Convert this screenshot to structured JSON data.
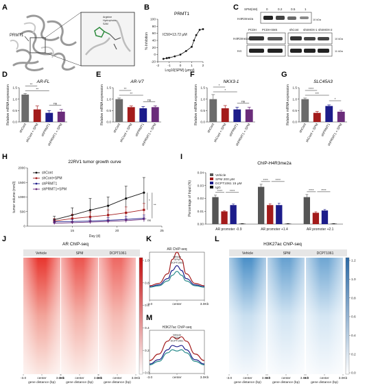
{
  "panel_letters": [
    "A",
    "B",
    "C",
    "D",
    "E",
    "F",
    "G",
    "H",
    "I",
    "J",
    "K",
    "L",
    "M"
  ],
  "colors": {
    "dark_gray": "#6b6b6b",
    "red": "#a31b1b",
    "blue": "#1c1c8a",
    "purple": "#6a2c7a",
    "heat_red": "#d7191c",
    "heat_blue": "#3a7fb8"
  },
  "panelA": {
    "protein": "PRMT1",
    "inset_labels": [
      "Arginine",
      "Hydrophobic",
      "SAM"
    ]
  },
  "panelB": {
    "title": "PRMT1",
    "ic50": "IC50=13.72 μM",
    "xlabel": "Log10[SPM] (μmol)",
    "ylabel": "% Inhibition"
  },
  "panelC": {
    "spm_header": "SPM(nM)",
    "spm_doses": [
      "0",
      "0.2",
      "0.5",
      "1"
    ],
    "rows": [
      "H4R3me2a",
      "H4R3me2a",
      "H4"
    ],
    "sizes": [
      "10 kDa",
      "10 kDa",
      "11 kDa"
    ],
    "lane_groups": [
      "PCDH",
      "PCDH-SMS",
      "shCont",
      "shSMOX-1",
      "shSMOX-2"
    ]
  },
  "chart_data": [
    {
      "type": "line",
      "panel": "B",
      "title": "PRMT1",
      "xlabel": "Log10[SPM] (μmol)",
      "ylabel": "% Inhibition",
      "xlim": [
        -2,
        2
      ],
      "ylim": [
        -20,
        100
      ],
      "x": [
        -1.5,
        -1.2,
        -1.0,
        -0.5,
        0.0,
        0.5,
        1.0,
        1.2,
        1.4,
        1.7,
        2.0
      ],
      "y": [
        -12,
        -10,
        -9,
        -5,
        0,
        10,
        22,
        40,
        55,
        70,
        72
      ]
    },
    {
      "type": "bar",
      "panel": "D",
      "title": "AR-FL",
      "ylabel": "Relative mRNA expression",
      "ylim": [
        0,
        1.5
      ],
      "yticks": [
        0.0,
        0.5,
        1.0,
        1.5
      ],
      "categories": [
        "shCont",
        "shCont + SPM",
        "shPRMT1",
        "shPRMT1 + SPM"
      ],
      "values": [
        1.2,
        0.55,
        0.4,
        0.45
      ],
      "errors": [
        0.05,
        0.15,
        0.1,
        0.1
      ],
      "significance": [
        "**",
        "**",
        "ns"
      ]
    },
    {
      "type": "bar",
      "panel": "E",
      "title": "AR-V7",
      "ylabel": "Relative mRNA expression",
      "ylim": [
        0,
        1.5
      ],
      "yticks": [
        0.0,
        0.5,
        1.0,
        1.5
      ],
      "categories": [
        "shCont",
        "shCont + SPM",
        "shPRMT1",
        "shPRMT1 + SPM"
      ],
      "values": [
        1.0,
        0.65,
        0.6,
        0.65
      ],
      "errors": [
        0.05,
        0.05,
        0.08,
        0.06
      ],
      "significance": [
        "**",
        "**",
        "ns"
      ]
    },
    {
      "type": "bar",
      "panel": "F",
      "title": "NKX3-1",
      "ylabel": "Relative mRNA expression",
      "ylim": [
        0,
        1.5
      ],
      "yticks": [
        0.0,
        0.5,
        1.0,
        1.5
      ],
      "categories": [
        "shCont",
        "shCont + SPM",
        "shPRMT1",
        "shPRMT1 + SPM"
      ],
      "values": [
        1.0,
        0.6,
        0.55,
        0.55
      ],
      "errors": [
        0.2,
        0.12,
        0.1,
        0.1
      ],
      "significance": [
        "*",
        "*",
        "ns"
      ]
    },
    {
      "type": "bar",
      "panel": "G",
      "title": "SLC45A3",
      "ylabel": "Relative mRNA expression",
      "ylim": [
        0,
        1.5
      ],
      "yticks": [
        0.0,
        0.5,
        1.0,
        1.5
      ],
      "categories": [
        "shCont",
        "shCont + SPM",
        "shPRMT1",
        "shPRMT1 + SPM"
      ],
      "values": [
        1.0,
        0.4,
        0.7,
        0.45
      ],
      "errors": [
        0.05,
        0.06,
        0.05,
        0.06
      ],
      "significance": [
        "****",
        "***",
        "*"
      ]
    },
    {
      "type": "line",
      "panel": "H",
      "title": "22RV1 tumor growth curve",
      "xlabel": "Day (d)",
      "ylabel": "tumor volume (mm3)",
      "xlim": [
        10,
        25
      ],
      "ylim": [
        0,
        2000
      ],
      "xticks": [
        15,
        20,
        25
      ],
      "yticks": [
        0,
        500,
        1000,
        1500,
        2000
      ],
      "x": [
        13,
        15,
        17,
        19,
        21,
        23
      ],
      "series": [
        {
          "name": "shCont",
          "values": [
            220,
            380,
            550,
            700,
            950,
            1150
          ],
          "errors": [
            120,
            250,
            400,
            300,
            420,
            520
          ]
        },
        {
          "name": "shCont+SPM",
          "values": [
            180,
            260,
            320,
            380,
            460,
            560
          ],
          "errors": [
            80,
            150,
            170,
            180,
            200,
            220
          ]
        },
        {
          "name": "shPRMT1",
          "values": [
            150,
            160,
            175,
            200,
            230,
            270
          ],
          "errors": [
            60,
            70,
            80,
            90,
            100,
            110
          ]
        },
        {
          "name": "shPRMT1+SPM",
          "values": [
            100,
            120,
            140,
            160,
            190,
            230
          ],
          "errors": [
            40,
            50,
            60,
            60,
            70,
            80
          ]
        }
      ],
      "significance": [
        "*",
        "**",
        "ns"
      ]
    },
    {
      "type": "bar",
      "panel": "I",
      "title": "ChIP-H4R3me2a",
      "ylabel": "Percentage of Input (%)",
      "ylim": [
        0,
        0.04
      ],
      "yticks": [
        0.0,
        0.01,
        0.02,
        0.03,
        0.04
      ],
      "categories": [
        "AR promoter -0.9",
        "AR promoter +1.4",
        "AR promoter +2.1"
      ],
      "series": [
        {
          "name": "Vehicle",
          "values": [
            0.021,
            0.029,
            0.021
          ],
          "errors": [
            0.0015,
            0.002,
            0.002
          ]
        },
        {
          "name": "SPM 200 μM",
          "values": [
            0.0099,
            0.0148,
            0.0088
          ],
          "errors": [
            0.0005,
            0.001,
            0.0008
          ]
        },
        {
          "name": "DCPT1061 15 μM",
          "values": [
            0.0148,
            0.0148,
            0.0106
          ],
          "errors": [
            0.0008,
            0.0015,
            0.0008
          ]
        },
        {
          "name": "IgG",
          "values": [
            0.0003,
            0.0003,
            0.0003
          ],
          "errors": [
            0.0001,
            0.0001,
            0.0001
          ]
        }
      ],
      "significance": [
        "****",
        "****",
        "****",
        "****",
        "****",
        "****"
      ]
    },
    {
      "type": "line",
      "panel": "K",
      "title": "AR ChIP-seq",
      "x_ticks": [
        "-3.0",
        "center",
        "3.0Kb"
      ],
      "x": [
        -3,
        -2,
        -1,
        -0.5,
        0,
        0.5,
        1,
        2,
        3
      ],
      "series": [
        {
          "name": "Vehicle",
          "values": [
            0.3,
            0.35,
            0.55,
            0.85,
            1.0,
            0.85,
            0.55,
            0.35,
            0.3
          ]
        },
        {
          "name": "SPM",
          "values": [
            0.28,
            0.32,
            0.45,
            0.62,
            0.72,
            0.62,
            0.45,
            0.32,
            0.28
          ]
        },
        {
          "name": "DCPT1061",
          "values": [
            0.27,
            0.3,
            0.4,
            0.52,
            0.6,
            0.52,
            0.4,
            0.3,
            0.27
          ]
        }
      ]
    },
    {
      "type": "line",
      "panel": "M",
      "title": "H3K27ac ChIP-seq",
      "x_ticks": [
        "-3.0",
        "center",
        "3.0Kb"
      ],
      "x": [
        -3,
        -2,
        -1,
        -0.5,
        0,
        0.5,
        1,
        2,
        3
      ],
      "series": [
        {
          "name": "Vehicle",
          "values": [
            0.3,
            0.45,
            0.75,
            0.85,
            0.8,
            0.85,
            0.75,
            0.45,
            0.3
          ]
        },
        {
          "name": "SPM",
          "values": [
            0.22,
            0.32,
            0.55,
            0.65,
            0.62,
            0.65,
            0.55,
            0.32,
            0.22
          ]
        },
        {
          "name": "DCPT1061",
          "values": [
            0.2,
            0.28,
            0.48,
            0.55,
            0.52,
            0.55,
            0.48,
            0.28,
            0.2
          ]
        }
      ]
    },
    {
      "type": "heatmap",
      "panel": "J",
      "title": "AR ChIP-seq",
      "columns": [
        "Vehicle",
        "SPM",
        "DCPT1061"
      ],
      "x_ticks": [
        "-3.0",
        "center",
        "3.0Kb"
      ],
      "xlabel": "gene distance (bp)",
      "colorbar": [
        0.0,
        0.2,
        0.4,
        0.6,
        0.8,
        1.0
      ]
    },
    {
      "type": "heatmap",
      "panel": "L",
      "title": "H3K27ac ChIP-seq",
      "columns": [
        "Vehicle",
        "SPM",
        "DCPT1061"
      ],
      "x_ticks": [
        "-3.0",
        "center",
        "3.0Kb"
      ],
      "xlabel": "gene distance (bp)",
      "colorbar": [
        0.0,
        0.2,
        0.4,
        0.6,
        0.8,
        1.0,
        1.2
      ]
    }
  ],
  "legend_H": [
    "shCont",
    "shCont+SPM",
    "shPRMT1",
    "shPRMT1+SPM"
  ],
  "legend_I": [
    "Vehicle",
    "SPM 200 μM",
    "DCPT1061 15 μM",
    "IgG"
  ],
  "legend_K": [
    "Vehicle",
    "SPM",
    "DCPT1061"
  ],
  "legend_M": [
    "Vehicle",
    "SPM",
    "DCPT1061"
  ]
}
